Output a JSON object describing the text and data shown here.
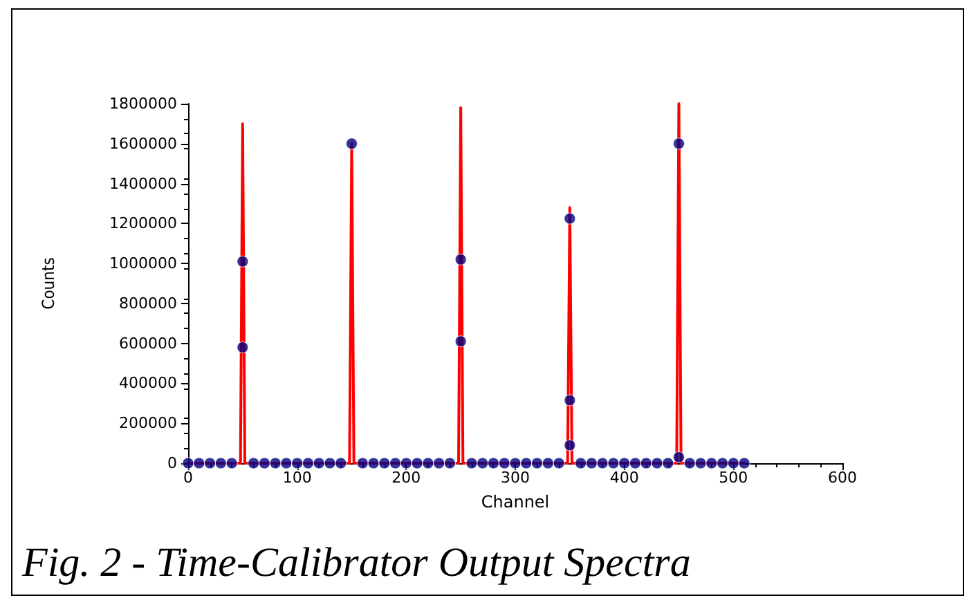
{
  "chart_data": {
    "type": "scatter",
    "xlabel": "Channel",
    "ylabel": "Counts",
    "annotations": [
      "Fig. 2 - Time-Calibrator Output Spectra"
    ],
    "xlim": [
      0,
      600
    ],
    "xticks": [
      0,
      100,
      200,
      300,
      400,
      500,
      600
    ],
    "ylim": [
      0,
      1800000
    ],
    "yticks": [
      0,
      200000,
      400000,
      600000,
      800000,
      1000000,
      1200000,
      1400000,
      1600000,
      1800000
    ],
    "grid": false,
    "series": [
      {
        "type": "line",
        "color": "#ff0000",
        "marker": "none",
        "line_style": "solid",
        "x": [
          0,
          48,
          50,
          52,
          148,
          150,
          152,
          248,
          250,
          252,
          348,
          350,
          352,
          448,
          450,
          452,
          510
        ],
        "values": [
          0,
          0,
          1700000,
          0,
          0,
          1600000,
          0,
          0,
          1780000,
          0,
          0,
          1280000,
          0,
          0,
          1800000,
          0,
          0
        ]
      },
      {
        "color": "#000080",
        "marker": "circle",
        "x": [
          50,
          50,
          150,
          250,
          250,
          350,
          350,
          350,
          450,
          450,
          0,
          10,
          20,
          30,
          40,
          60,
          70,
          80,
          90,
          100,
          110,
          120,
          130,
          140,
          160,
          170,
          180,
          190,
          200,
          210,
          220,
          230,
          240,
          260,
          270,
          280,
          290,
          300,
          310,
          320,
          330,
          340,
          360,
          370,
          380,
          390,
          400,
          410,
          420,
          430,
          440,
          460,
          470,
          480,
          490,
          500,
          510
        ],
        "values": [
          1010000,
          580000,
          1600000,
          1020000,
          610000,
          1225000,
          315000,
          90000,
          1600000,
          30000,
          0,
          0,
          0,
          0,
          0,
          0,
          0,
          0,
          0,
          0,
          0,
          0,
          0,
          0,
          0,
          0,
          0,
          0,
          0,
          0,
          0,
          0,
          0,
          0,
          0,
          0,
          0,
          0,
          0,
          0,
          0,
          0,
          0,
          0,
          0,
          0,
          0,
          0,
          0,
          0,
          0,
          0,
          0,
          0,
          0,
          0,
          0
        ]
      }
    ]
  }
}
